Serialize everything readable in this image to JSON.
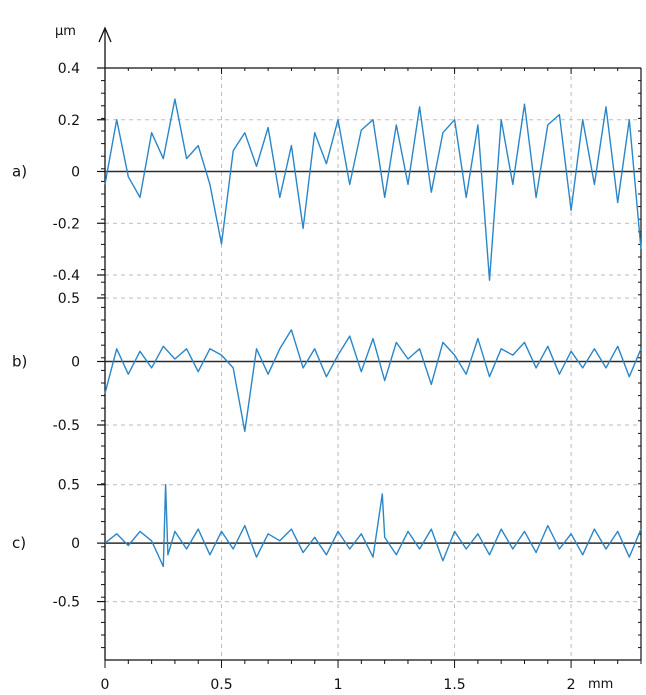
{
  "chart_data": {
    "type": "line",
    "x_unit": "mm",
    "y_unit": "µm",
    "x_ticks": [
      0,
      0.5,
      1,
      1.5,
      2
    ],
    "x_tick_labels": [
      "0",
      "0.5",
      "1",
      "1.5",
      "2"
    ],
    "x_range": [
      0,
      2.3
    ],
    "grid": true,
    "grid_style": "dashed",
    "line_color": "#2a86c8",
    "zero_line_color": "#2b2b2b",
    "panels": [
      {
        "label": "a)",
        "ylim": [
          -0.4,
          0.4
        ],
        "y_ticks": [
          0.4,
          0.2,
          0,
          -0.2,
          -0.4
        ],
        "y_tick_labels": [
          "0.4",
          "0.2",
          "0",
          "-0.2",
          "-0.4"
        ],
        "series": {
          "x": [
            0,
            0.05,
            0.1,
            0.15,
            0.2,
            0.25,
            0.3,
            0.35,
            0.4,
            0.45,
            0.5,
            0.55,
            0.6,
            0.65,
            0.7,
            0.75,
            0.8,
            0.85,
            0.9,
            0.95,
            1.0,
            1.05,
            1.1,
            1.15,
            1.2,
            1.25,
            1.3,
            1.35,
            1.4,
            1.45,
            1.5,
            1.55,
            1.6,
            1.65,
            1.7,
            1.75,
            1.8,
            1.85,
            1.9,
            1.95,
            2.0,
            2.05,
            2.1,
            2.15,
            2.2,
            2.25,
            2.3
          ],
          "y": [
            -0.05,
            0.2,
            -0.02,
            -0.1,
            0.15,
            0.05,
            0.28,
            0.05,
            0.1,
            -0.05,
            -0.28,
            0.08,
            0.15,
            0.02,
            0.17,
            -0.1,
            0.1,
            -0.22,
            0.15,
            0.03,
            0.2,
            -0.05,
            0.16,
            0.2,
            -0.1,
            0.18,
            -0.05,
            0.25,
            -0.08,
            0.15,
            0.2,
            -0.1,
            0.18,
            -0.42,
            0.2,
            -0.05,
            0.26,
            -0.1,
            0.18,
            0.22,
            -0.15,
            0.2,
            -0.05,
            0.25,
            -0.12,
            0.2,
            -0.3
          ]
        }
      },
      {
        "label": "b)",
        "ylim": [
          -0.5,
          0.5
        ],
        "y_ticks": [
          0.5,
          0,
          -0.5
        ],
        "y_tick_labels": [
          "0.5",
          "0",
          "-0.5"
        ],
        "series": {
          "x": [
            0,
            0.05,
            0.1,
            0.15,
            0.2,
            0.25,
            0.3,
            0.35,
            0.4,
            0.45,
            0.5,
            0.55,
            0.6,
            0.65,
            0.7,
            0.75,
            0.8,
            0.85,
            0.9,
            0.95,
            1.0,
            1.05,
            1.1,
            1.15,
            1.2,
            1.25,
            1.3,
            1.35,
            1.4,
            1.45,
            1.5,
            1.55,
            1.6,
            1.65,
            1.7,
            1.75,
            1.8,
            1.85,
            1.9,
            1.95,
            2.0,
            2.05,
            2.1,
            2.15,
            2.2,
            2.25,
            2.3
          ],
          "y": [
            -0.25,
            0.1,
            -0.1,
            0.08,
            -0.05,
            0.12,
            0.02,
            0.1,
            -0.08,
            0.1,
            0.05,
            -0.05,
            -0.55,
            0.1,
            -0.1,
            0.1,
            0.25,
            -0.05,
            0.1,
            -0.12,
            0.05,
            0.2,
            -0.08,
            0.18,
            -0.15,
            0.15,
            0.02,
            0.1,
            -0.18,
            0.15,
            0.05,
            -0.1,
            0.18,
            -0.12,
            0.1,
            0.05,
            0.15,
            -0.05,
            0.12,
            -0.1,
            0.08,
            -0.05,
            0.1,
            -0.05,
            0.12,
            -0.12,
            0.1
          ]
        }
      },
      {
        "label": "c)",
        "ylim": [
          -1.0,
          0.6
        ],
        "y_ticks": [
          0.5,
          0,
          -0.5
        ],
        "y_tick_labels": [
          "0.5",
          "0",
          "-0.5"
        ],
        "series": {
          "x": [
            0,
            0.05,
            0.1,
            0.15,
            0.2,
            0.25,
            0.26,
            0.27,
            0.3,
            0.35,
            0.4,
            0.45,
            0.5,
            0.55,
            0.6,
            0.65,
            0.7,
            0.75,
            0.8,
            0.85,
            0.9,
            0.95,
            1.0,
            1.05,
            1.1,
            1.15,
            1.19,
            1.2,
            1.25,
            1.3,
            1.35,
            1.4,
            1.45,
            1.5,
            1.55,
            1.6,
            1.65,
            1.7,
            1.75,
            1.8,
            1.85,
            1.9,
            1.95,
            2.0,
            2.05,
            2.1,
            2.15,
            2.2,
            2.25,
            2.3
          ],
          "y": [
            0.0,
            0.08,
            -0.02,
            0.1,
            0.02,
            -0.2,
            0.5,
            -0.1,
            0.1,
            -0.05,
            0.12,
            -0.1,
            0.1,
            -0.05,
            0.15,
            -0.12,
            0.08,
            0.02,
            0.12,
            -0.08,
            0.05,
            -0.1,
            0.1,
            -0.05,
            0.08,
            -0.12,
            0.42,
            0.05,
            -0.1,
            0.1,
            -0.05,
            0.12,
            -0.15,
            0.1,
            -0.05,
            0.08,
            -0.1,
            0.12,
            -0.05,
            0.1,
            -0.08,
            0.15,
            -0.05,
            0.08,
            -0.1,
            0.12,
            -0.05,
            0.1,
            -0.12,
            0.12
          ]
        }
      }
    ]
  }
}
